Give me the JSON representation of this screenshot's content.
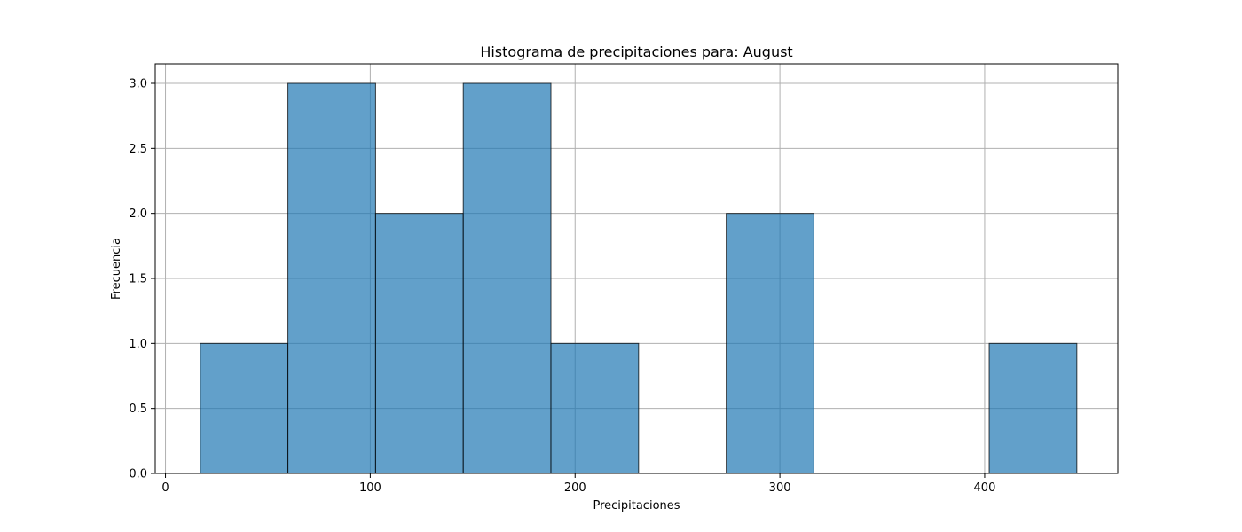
{
  "chart_data": {
    "type": "bar",
    "title": "Histograma de precipitaciones para: August",
    "xlabel": "Precipitaciones",
    "ylabel": "Frecuencia",
    "xlim": [
      -5,
      465
    ],
    "ylim": [
      0,
      3.15
    ],
    "grid": true,
    "x_ticks": [
      0,
      100,
      200,
      300,
      400
    ],
    "x_tick_labels": [
      "0",
      "100",
      "200",
      "300",
      "400"
    ],
    "y_ticks": [
      0,
      0.5,
      1,
      1.5,
      2,
      2.5,
      3
    ],
    "y_tick_labels": [
      "0.0",
      "0.5",
      "1.0",
      "1.5",
      "2.0",
      "2.5",
      "3.0"
    ],
    "bins": [
      {
        "start": 17,
        "end": 59.8,
        "count": 1
      },
      {
        "start": 59.8,
        "end": 102.6,
        "count": 3
      },
      {
        "start": 102.6,
        "end": 145.4,
        "count": 2
      },
      {
        "start": 145.4,
        "end": 188.2,
        "count": 3
      },
      {
        "start": 188.2,
        "end": 231.0,
        "count": 1
      },
      {
        "start": 231.0,
        "end": 273.8,
        "count": 0
      },
      {
        "start": 273.8,
        "end": 316.6,
        "count": 2
      },
      {
        "start": 316.6,
        "end": 359.4,
        "count": 0
      },
      {
        "start": 359.4,
        "end": 402.2,
        "count": 0
      },
      {
        "start": 402.2,
        "end": 445.0,
        "count": 1
      }
    ],
    "colors": {
      "bar_fill": "#1f77b4",
      "bar_opacity": 0.7,
      "bar_edge": "#000000",
      "grid": "#b0b0b0",
      "axes": "#000000"
    }
  }
}
